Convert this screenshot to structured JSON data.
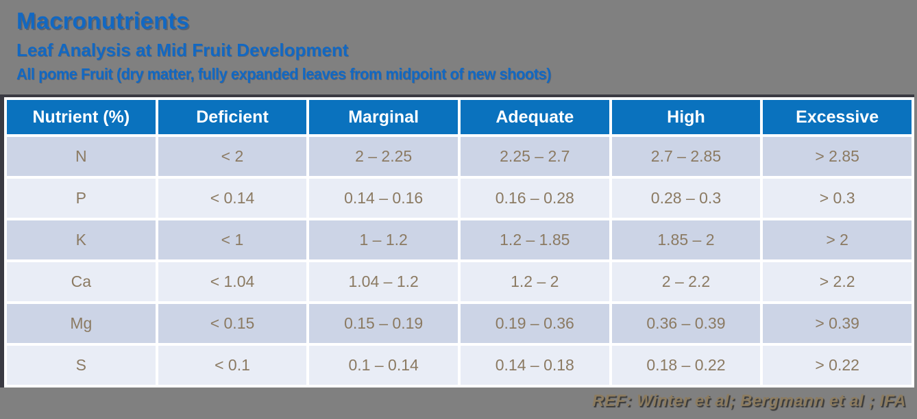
{
  "header": {
    "title": "Macronutrients",
    "subtitle": "Leaf Analysis at Mid Fruit Development",
    "description": "All pome Fruit (dry matter, fully expanded leaves from midpoint of new shoots)"
  },
  "table": {
    "columns": [
      "Nutrient (%)",
      "Deficient",
      "Marginal",
      "Adequate",
      "High",
      "Excessive"
    ],
    "rows": [
      [
        "N",
        "< 2",
        "2 – 2.25",
        "2.25 – 2.7",
        "2.7 – 2.85",
        "> 2.85"
      ],
      [
        "P",
        "< 0.14",
        "0.14 – 0.16",
        "0.16 – 0.28",
        "0.28 – 0.3",
        "> 0.3"
      ],
      [
        "K",
        "< 1",
        "1 – 1.2",
        "1.2 – 1.85",
        "1.85 – 2",
        "> 2"
      ],
      [
        "Ca",
        "< 1.04",
        "1.04 – 1.2",
        "1.2 – 2",
        "2 – 2.2",
        "> 2.2"
      ],
      [
        "Mg",
        "< 0.15",
        "0.15 – 0.19",
        "0.19 – 0.36",
        "0.36 – 0.39",
        "> 0.39"
      ],
      [
        "S",
        "< 0.1",
        "0.1 – 0.14",
        "0.14 – 0.18",
        "0.18 – 0.22",
        "> 0.22"
      ]
    ]
  },
  "footer": {
    "reference": "REF: Winter et al; Bergmann et al ; IFA"
  },
  "colors": {
    "slide_background": "#808080",
    "title_blue": "#1268c2",
    "table_header_background": "#0a72be",
    "table_header_text": "#ffffff",
    "row_dark": "#ccd4e6",
    "row_light": "#e9edf6",
    "cell_text": "#8b7a62",
    "reference_text": "#8d7c5f",
    "table_border": "#3a3a42"
  }
}
